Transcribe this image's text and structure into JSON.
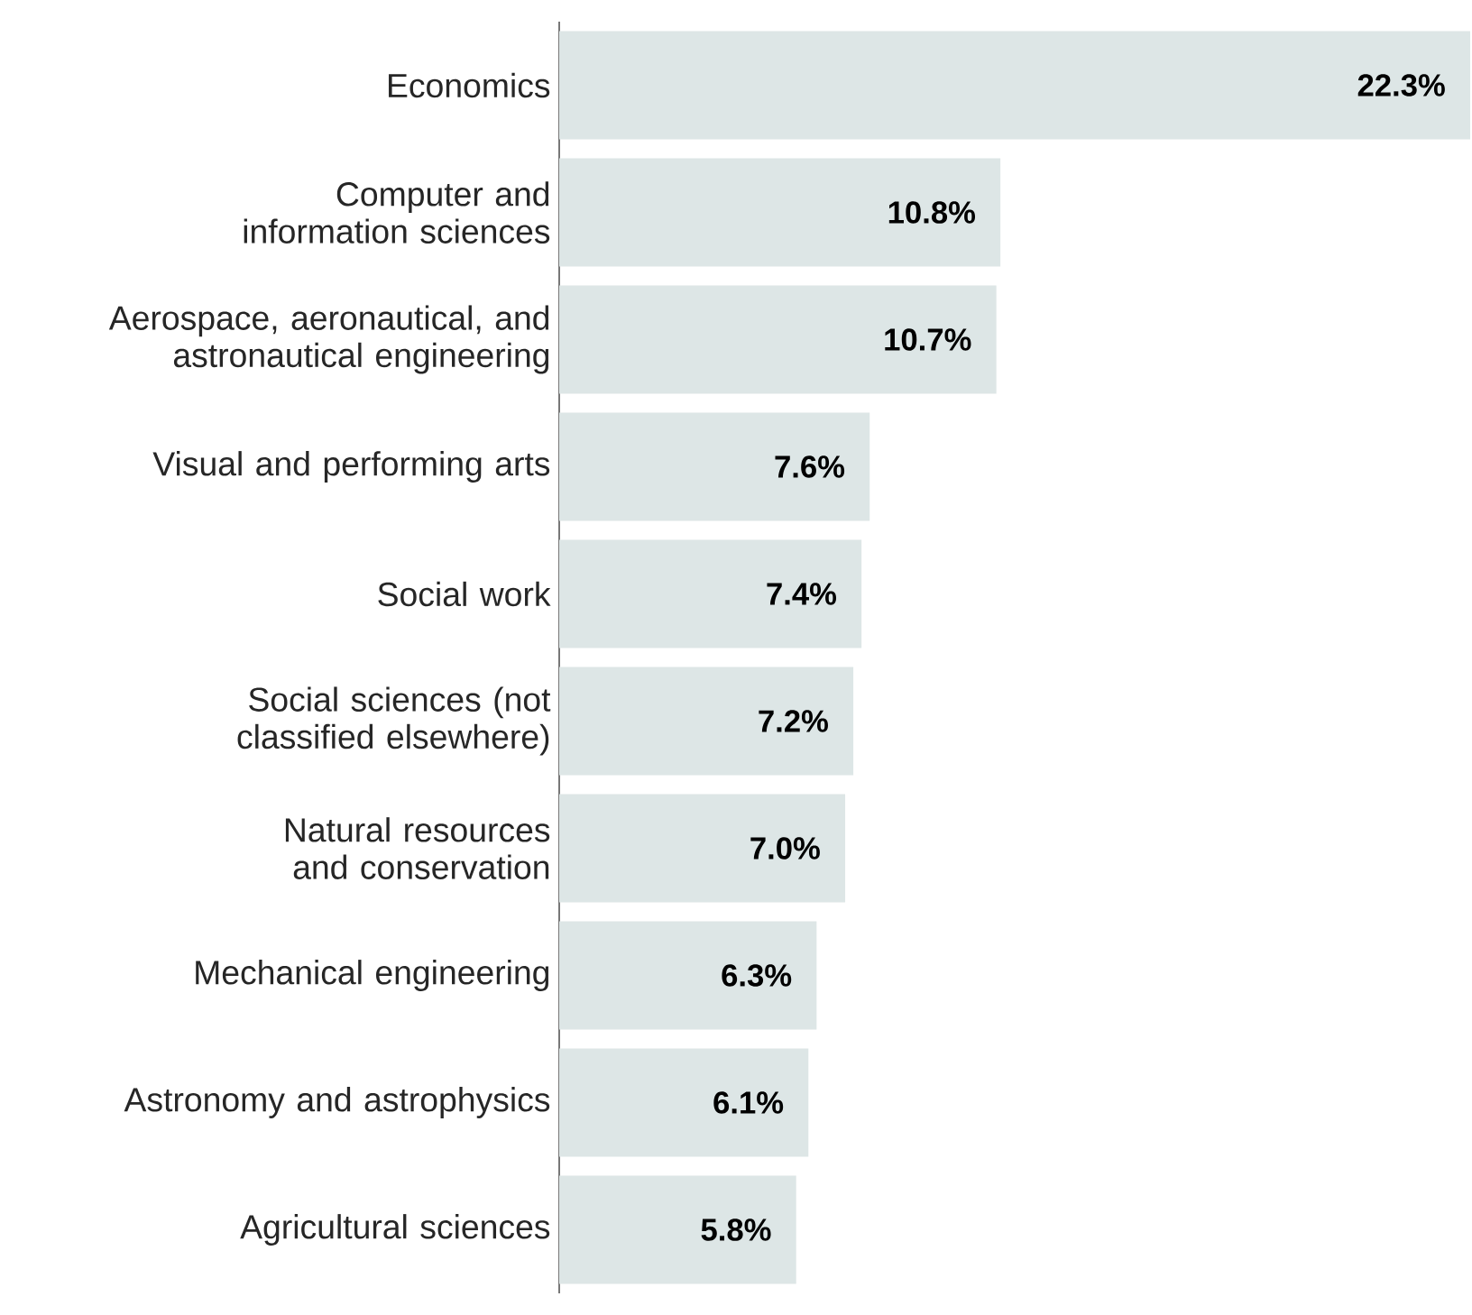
{
  "chart_data": {
    "type": "bar",
    "orientation": "horizontal",
    "categories": [
      "Economics",
      "Computer and information sciences",
      "Aerospace, aeronautical, and astronautical engineering",
      "Visual and performing arts",
      "Social work",
      "Social sciences (not classified elsewhere)",
      "Natural resources and conservation",
      "Mechanical engineering",
      "Astronomy and astrophysics",
      "Agricultural sciences"
    ],
    "values": [
      22.3,
      10.8,
      10.7,
      7.6,
      7.4,
      7.2,
      7.0,
      6.3,
      6.1,
      5.8
    ],
    "value_labels": [
      "22.3%",
      "10.8%",
      "10.7%",
      "7.6%",
      "7.4%",
      "7.2%",
      "7.0%",
      "6.3%",
      "6.1%",
      "5.8%"
    ],
    "color": "#dde6e6"
  }
}
